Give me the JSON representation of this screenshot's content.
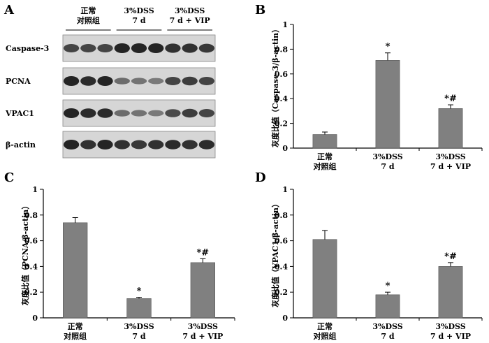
{
  "panel_letters": [
    "A",
    "B",
    "C",
    "D"
  ],
  "blot": {
    "group_headers": [
      {
        "lines": [
          "正常",
          "对照组"
        ]
      },
      {
        "lines": [
          "3%DSS",
          "7 d"
        ]
      },
      {
        "lines": [
          "3%DSS",
          "7 d + VIP"
        ]
      }
    ],
    "rows": [
      {
        "label": "Caspase-3",
        "band_intensity": [
          0.75,
          0.75,
          0.75,
          1.0,
          1.0,
          1.0,
          0.9,
          0.9,
          0.85
        ]
      },
      {
        "label": "PCNA",
        "band_intensity": [
          1.0,
          0.95,
          1.0,
          0.45,
          0.4,
          0.35,
          0.75,
          0.8,
          0.75
        ]
      },
      {
        "label": "VPAC1",
        "band_intensity": [
          1.0,
          0.95,
          0.95,
          0.45,
          0.4,
          0.35,
          0.7,
          0.8,
          0.75
        ]
      },
      {
        "label": "β-actin",
        "band_intensity": [
          1.0,
          0.9,
          1.0,
          0.9,
          0.85,
          0.9,
          0.95,
          0.9,
          0.95
        ]
      }
    ]
  },
  "categories": [
    {
      "lines": [
        "正常",
        "对照组"
      ]
    },
    {
      "lines": [
        "3%DSS",
        "7 d"
      ]
    },
    {
      "lines": [
        "3%DSS",
        "7 d + VIP"
      ]
    }
  ],
  "chart_data": [
    {
      "panel": "B",
      "type": "bar",
      "ylabel": "灰度比值（Caspase-3/β-actin）",
      "ylim": [
        0,
        1
      ],
      "yticks": [
        "0",
        "0.2",
        "0.4",
        "0.6",
        "0.8",
        "1"
      ],
      "values": [
        0.11,
        0.71,
        0.32
      ],
      "errors": [
        0.02,
        0.06,
        0.03
      ],
      "significance": [
        "",
        "*",
        "*#"
      ]
    },
    {
      "panel": "C",
      "type": "bar",
      "ylabel": "灰度比值（PCNA/β-actin）",
      "ylim": [
        0,
        1
      ],
      "yticks": [
        "0",
        "0.2",
        "0.4",
        "0.6",
        "0.8",
        "1"
      ],
      "values": [
        0.74,
        0.15,
        0.43
      ],
      "errors": [
        0.04,
        0.01,
        0.03
      ],
      "significance": [
        "",
        "*",
        "*#"
      ]
    },
    {
      "panel": "D",
      "type": "bar",
      "ylabel": "灰度比值（VPAC1/β-actin）",
      "ylim": [
        0,
        1
      ],
      "yticks": [
        "0",
        "0.2",
        "0.4",
        "0.6",
        "0.8",
        "1"
      ],
      "values": [
        0.61,
        0.18,
        0.4
      ],
      "errors": [
        0.07,
        0.02,
        0.03
      ],
      "significance": [
        "",
        "*",
        "*#"
      ]
    }
  ],
  "colors": {
    "bar": "#808080",
    "bar_edge": "#555555",
    "axis": "#000000",
    "blot_bg": "#d6d6d6",
    "band": "#1a1a1a"
  }
}
